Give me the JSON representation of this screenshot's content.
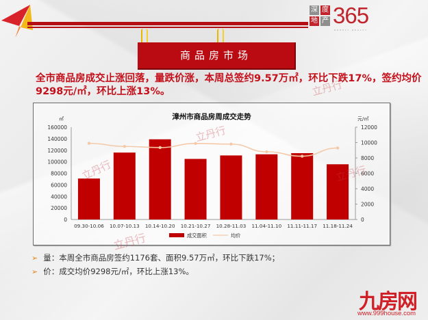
{
  "header": {
    "brand_logo": {
      "box1": "深",
      "box2": "度",
      "box3": "地",
      "box4": "产",
      "number": "365",
      "subtitle": "DEEPLY REALTY"
    },
    "plane_icon": "paper-plane-icon"
  },
  "banner": {
    "title": "商品房市场"
  },
  "headline": "全市商品房成交止涨回落，量跌价涨，本周总签约9.57万㎡，环比下跌17%，签约均价9298元/㎡，环比上涨13%。",
  "watermark": "立丹行",
  "chart": {
    "title": "漳州市商品房周成交走势",
    "left_unit": "㎡",
    "right_unit": "元/㎡",
    "left_ticks": [
      "160000",
      "140000",
      "120000",
      "100000",
      "80000",
      "60000",
      "40000",
      "20000",
      "0"
    ],
    "right_ticks": [
      "12000",
      "10000",
      "8000",
      "6000",
      "4000",
      "2000",
      "0"
    ],
    "legend": {
      "bar": "成交面积",
      "line": "均价"
    },
    "colors": {
      "bar": "#c00000",
      "line": "#f4c9a8"
    }
  },
  "chart_data": {
    "type": "bar",
    "title": "漳州市商品房周成交走势",
    "categories": [
      "09.30-10.06",
      "10.07-10.13",
      "10.14-10.20",
      "10.21-10.27",
      "10.28-11.03",
      "11.04-11.10",
      "11.11-11.17",
      "11.18-11.24"
    ],
    "series": [
      {
        "name": "成交面积",
        "type": "bar",
        "axis": "left",
        "values": [
          71000,
          116000,
          139000,
          105000,
          111000,
          113000,
          115000,
          95700
        ]
      },
      {
        "name": "均价",
        "type": "line",
        "axis": "right",
        "values": [
          9900,
          9500,
          9350,
          9880,
          9800,
          8800,
          8230,
          9298
        ]
      }
    ],
    "xlabel": "",
    "ylabel": "㎡",
    "ylabel_right": "元/㎡",
    "ylim": [
      0,
      160000
    ],
    "ylim_right": [
      0,
      12000
    ],
    "grid": false,
    "legend_position": "bottom"
  },
  "bullets": [
    {
      "text": "量：本周全市商品房签约1176套、面积9.57万㎡，环比下跌17%；"
    },
    {
      "text": "价：成交均价9298元/㎡，环比上涨13%。"
    }
  ],
  "footer_logo": {
    "name": "九房网",
    "url": "www.999house.com"
  }
}
